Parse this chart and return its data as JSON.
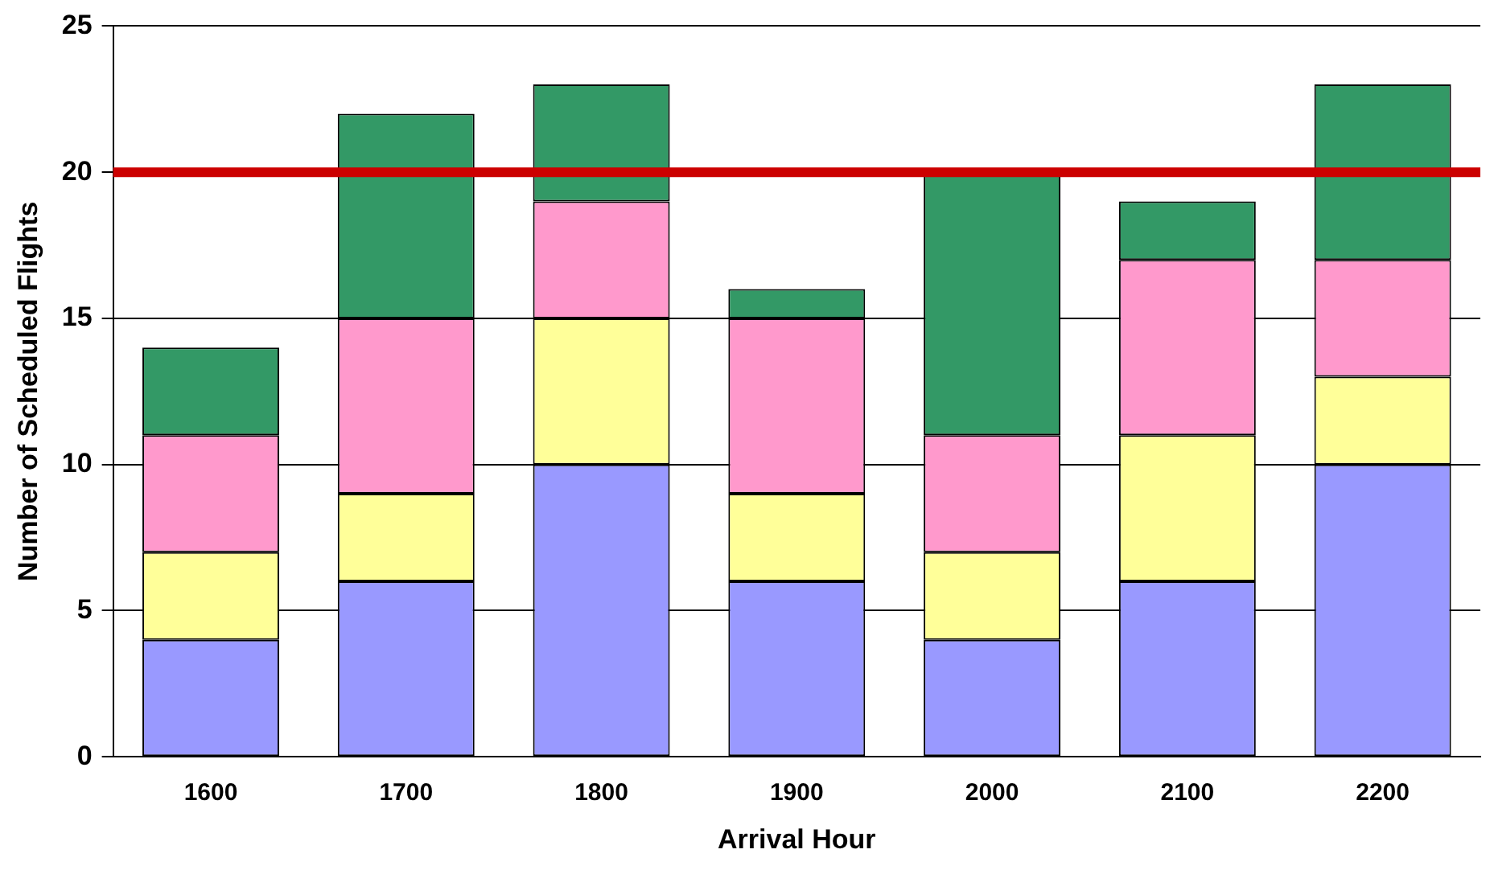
{
  "chart_data": {
    "type": "bar",
    "stacked": true,
    "xlabel": "Arrival Hour",
    "ylabel": "Number of Scheduled Flights",
    "categories": [
      "1600",
      "1700",
      "1800",
      "1900",
      "2000",
      "2100",
      "2200"
    ],
    "series": [
      {
        "color": "#9999ff",
        "values": [
          4,
          6,
          10,
          6,
          4,
          6,
          10
        ]
      },
      {
        "color": "#ffff99",
        "values": [
          3,
          3,
          5,
          3,
          3,
          5,
          3
        ]
      },
      {
        "color": "#ff99cc",
        "values": [
          4,
          6,
          4,
          6,
          4,
          6,
          4
        ]
      },
      {
        "color": "#339966",
        "values": [
          3,
          7,
          4,
          1,
          9,
          2,
          6
        ]
      }
    ],
    "ylim": [
      0,
      25
    ],
    "yticks": [
      0,
      5,
      10,
      15,
      20,
      25
    ],
    "grid": "y",
    "legend": false,
    "ref_lines": [
      {
        "axis": "y",
        "value": 20,
        "color": "#cc0000"
      }
    ]
  }
}
